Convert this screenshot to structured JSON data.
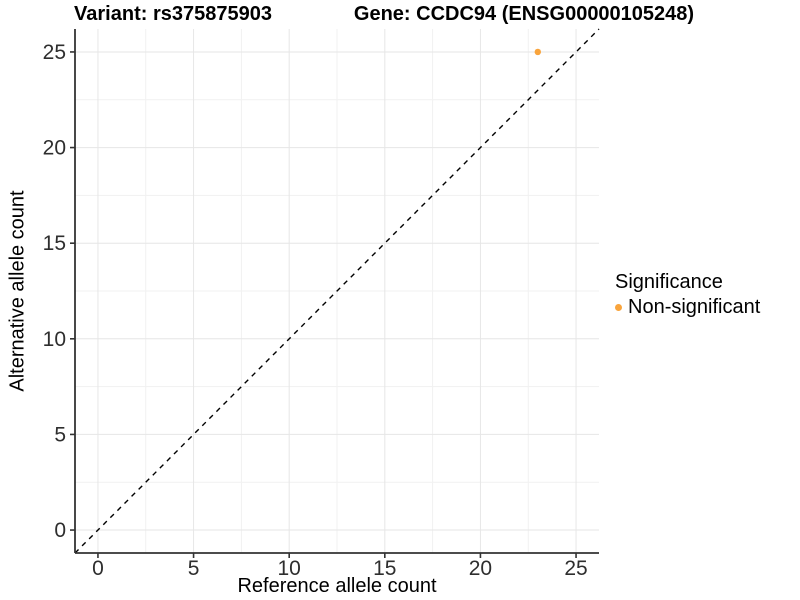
{
  "figure": {
    "title_left": "Variant: rs375875903",
    "title_right": "Gene: CCDC94 (ENSG00000105248)"
  },
  "axes": {
    "x_label": "Reference allele count",
    "y_label": "Alternative allele count"
  },
  "legend": {
    "title": "Significance",
    "items": [
      {
        "label": "Non-significant",
        "color": "#F9A43C",
        "marker": "circle-icon"
      }
    ]
  },
  "colors": {
    "point_orange": "#F9A43C",
    "axis_line": "#333333",
    "tick_label": "#2e2e2e",
    "grid_major": "#e6e6e6",
    "grid_minor": "#f1f1f1",
    "identity_line": "#000000",
    "background": "#ffffff"
  },
  "chart_data": {
    "type": "scatter",
    "title": "Variant: rs375875903   Gene: CCDC94 (ENSG00000105248)",
    "xlabel": "Reference allele count",
    "ylabel": "Alternative allele count",
    "xlim": [
      -1.2,
      26.2
    ],
    "ylim": [
      -1.2,
      26.2
    ],
    "x_ticks": [
      0,
      5,
      10,
      15,
      20,
      25
    ],
    "y_ticks": [
      0,
      5,
      10,
      15,
      20,
      25
    ],
    "x_minor_ticks": [
      2.5,
      7.5,
      12.5,
      17.5,
      22.5
    ],
    "y_minor_ticks": [
      2.5,
      7.5,
      12.5,
      17.5,
      22.5
    ],
    "grid": true,
    "legend_title": "Significance",
    "legend_position": "right",
    "series": [
      {
        "name": "Non-significant",
        "color": "#F9A43C",
        "points": [
          {
            "x": 23,
            "y": 25
          }
        ]
      }
    ],
    "reference_line": {
      "kind": "identity",
      "equation": "y = x",
      "style": "dashed",
      "color": "#000000"
    }
  }
}
